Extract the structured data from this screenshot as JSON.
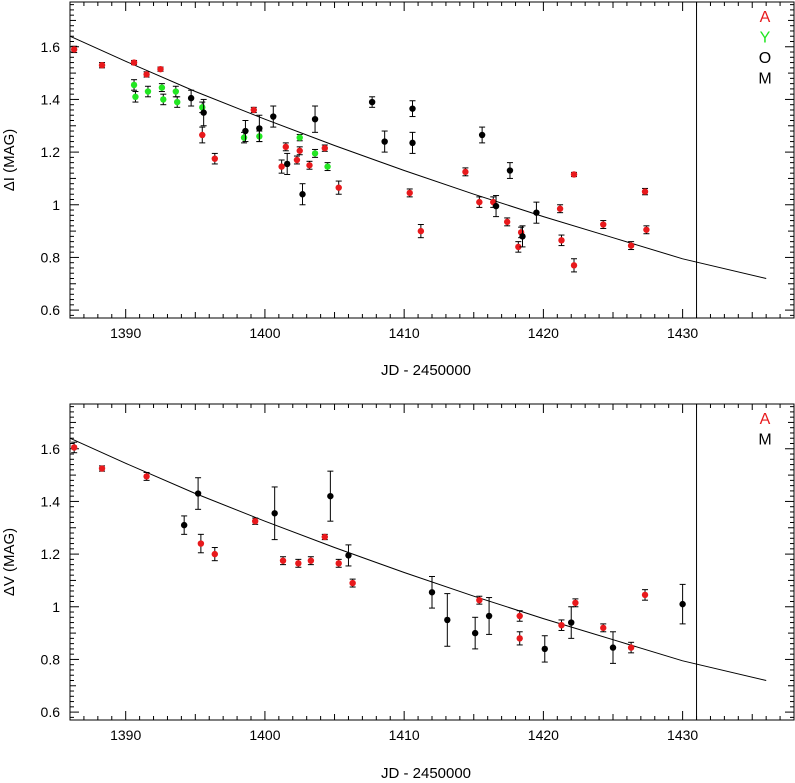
{
  "chart_data": [
    {
      "type": "scatter",
      "panel": "top",
      "xlabel": "JD - 2450000",
      "ylabel": "ΔI (MAG)",
      "xlim": [
        1386,
        1438
      ],
      "ylim": [
        0.57,
        1.77
      ],
      "x_ticks": [
        1390,
        1400,
        1410,
        1420,
        1430
      ],
      "y_ticks": [
        0.6,
        0.8,
        1,
        1.2,
        1.4,
        1.6
      ],
      "y_tick_labels": [
        "0.6",
        "0.8",
        "1",
        "1.2",
        "1.4",
        "1.6"
      ],
      "grid": false,
      "legend_position": "top-right",
      "vertical_line_x": 1431,
      "fit_curve": {
        "x": [
          1386,
          1390,
          1395,
          1400,
          1405,
          1410,
          1415,
          1420,
          1425,
          1430,
          1436
        ],
        "y": [
          1.64,
          1.545,
          1.43,
          1.325,
          1.225,
          1.13,
          1.04,
          0.955,
          0.875,
          0.795,
          0.72
        ]
      },
      "series": [
        {
          "name": "A",
          "color": "#e8191c",
          "points": [
            [
              1386.3,
              1.59,
              0.012
            ],
            [
              1388.3,
              1.53,
              0.01
            ],
            [
              1390.6,
              1.54,
              0.008
            ],
            [
              1391.5,
              1.495,
              0.01
            ],
            [
              1392.5,
              1.515,
              0.008
            ],
            [
              1395.5,
              1.265,
              0.03
            ],
            [
              1396.4,
              1.175,
              0.02
            ],
            [
              1399.2,
              1.36,
              0.01
            ],
            [
              1401.2,
              1.145,
              0.025
            ],
            [
              1401.5,
              1.22,
              0.015
            ],
            [
              1402.3,
              1.17,
              0.015
            ],
            [
              1402.5,
              1.205,
              0.015
            ],
            [
              1403.2,
              1.15,
              0.015
            ],
            [
              1404.3,
              1.215,
              0.012
            ],
            [
              1405.3,
              1.065,
              0.025
            ],
            [
              1410.4,
              1.045,
              0.015
            ],
            [
              1411.2,
              0.9,
              0.025
            ],
            [
              1414.4,
              1.125,
              0.015
            ],
            [
              1415.4,
              1.01,
              0.02
            ],
            [
              1416.4,
              1.01,
              0.02
            ],
            [
              1417.4,
              0.935,
              0.015
            ],
            [
              1418.2,
              0.84,
              0.02
            ],
            [
              1418.4,
              0.895,
              0.02
            ],
            [
              1421.2,
              0.985,
              0.015
            ],
            [
              1421.3,
              0.865,
              0.02
            ],
            [
              1422.2,
              1.115,
              0.008
            ],
            [
              1422.2,
              0.77,
              0.025
            ],
            [
              1424.3,
              0.925,
              0.015
            ],
            [
              1426.3,
              0.845,
              0.015
            ],
            [
              1427.3,
              1.05,
              0.012
            ],
            [
              1427.4,
              0.905,
              0.015
            ]
          ]
        },
        {
          "name": "Y",
          "color": "#22e622",
          "points": [
            [
              1390.6,
              1.455,
              0.02
            ],
            [
              1390.7,
              1.41,
              0.02
            ],
            [
              1391.6,
              1.43,
              0.02
            ],
            [
              1392.6,
              1.445,
              0.015
            ],
            [
              1392.7,
              1.4,
              0.02
            ],
            [
              1393.6,
              1.43,
              0.02
            ],
            [
              1393.7,
              1.39,
              0.02
            ],
            [
              1395.5,
              1.37,
              0.02
            ],
            [
              1398.5,
              1.255,
              0.02
            ],
            [
              1399.6,
              1.26,
              0.02
            ],
            [
              1402.5,
              1.255,
              0.012
            ],
            [
              1403.6,
              1.195,
              0.015
            ],
            [
              1404.5,
              1.145,
              0.015
            ]
          ]
        },
        {
          "name": "O",
          "color": "#000000",
          "points": [
            [
              1394.7,
              1.405,
              0.03
            ],
            [
              1395.6,
              1.35,
              0.05
            ],
            [
              1398.6,
              1.28,
              0.04
            ],
            [
              1399.6,
              1.29,
              0.05
            ],
            [
              1400.6,
              1.335,
              0.04
            ],
            [
              1401.6,
              1.155,
              0.04
            ],
            [
              1402.7,
              1.04,
              0.04
            ],
            [
              1403.6,
              1.325,
              0.05
            ],
            [
              1407.7,
              1.39,
              0.02
            ],
            [
              1408.6,
              1.24,
              0.04
            ],
            [
              1410.6,
              1.365,
              0.03
            ],
            [
              1410.6,
              1.235,
              0.04
            ],
            [
              1415.6,
              1.265,
              0.03
            ],
            [
              1416.6,
              0.995,
              0.04
            ],
            [
              1417.6,
              1.13,
              0.03
            ],
            [
              1418.5,
              0.88,
              0.04
            ],
            [
              1419.5,
              0.97,
              0.04
            ]
          ]
        },
        {
          "name": "M",
          "color": "#000000",
          "points": []
        }
      ]
    },
    {
      "type": "scatter",
      "panel": "bottom",
      "xlabel": "JD - 2450000",
      "ylabel": "ΔV (MAG)",
      "xlim": [
        1386,
        1438
      ],
      "ylim": [
        0.57,
        1.77
      ],
      "x_ticks": [
        1390,
        1400,
        1410,
        1420,
        1430
      ],
      "y_ticks": [
        0.6,
        0.8,
        1,
        1.2,
        1.4,
        1.6
      ],
      "y_tick_labels": [
        "0.6",
        "0.8",
        "1",
        "1.2",
        "1.4",
        "1.6"
      ],
      "grid": false,
      "legend_position": "top-right",
      "vertical_line_x": 1431,
      "fit_curve": {
        "x": [
          1386,
          1390,
          1395,
          1400,
          1405,
          1410,
          1415,
          1420,
          1425,
          1430,
          1436
        ],
        "y": [
          1.64,
          1.545,
          1.43,
          1.325,
          1.225,
          1.13,
          1.04,
          0.955,
          0.875,
          0.795,
          0.72
        ]
      },
      "series": [
        {
          "name": "A",
          "color": "#e8191c",
          "points": [
            [
              1386.3,
              1.605,
              0.02
            ],
            [
              1388.3,
              1.525,
              0.01
            ],
            [
              1391.5,
              1.495,
              0.015
            ],
            [
              1395.4,
              1.24,
              0.035
            ],
            [
              1396.4,
              1.2,
              0.025
            ],
            [
              1399.3,
              1.325,
              0.012
            ],
            [
              1401.3,
              1.175,
              0.015
            ],
            [
              1402.4,
              1.165,
              0.015
            ],
            [
              1403.3,
              1.175,
              0.015
            ],
            [
              1404.3,
              1.265,
              0.01
            ],
            [
              1405.3,
              1.165,
              0.015
            ],
            [
              1406.3,
              1.09,
              0.015
            ],
            [
              1415.4,
              1.025,
              0.015
            ],
            [
              1418.3,
              0.965,
              0.02
            ],
            [
              1418.3,
              0.88,
              0.025
            ],
            [
              1421.3,
              0.93,
              0.02
            ],
            [
              1422.3,
              1.015,
              0.015
            ],
            [
              1424.3,
              0.92,
              0.015
            ],
            [
              1426.3,
              0.845,
              0.02
            ],
            [
              1427.3,
              1.045,
              0.02
            ]
          ]
        },
        {
          "name": "M",
          "color": "#000000",
          "points": [
            [
              1394.2,
              1.31,
              0.035
            ],
            [
              1395.2,
              1.43,
              0.06
            ],
            [
              1400.7,
              1.355,
              0.1
            ],
            [
              1404.7,
              1.42,
              0.095
            ],
            [
              1406.0,
              1.195,
              0.04
            ],
            [
              1412.0,
              1.055,
              0.06
            ],
            [
              1413.1,
              0.95,
              0.1
            ],
            [
              1415.1,
              0.9,
              0.06
            ],
            [
              1416.1,
              0.965,
              0.07
            ],
            [
              1420.1,
              0.84,
              0.05
            ],
            [
              1422.0,
              0.94,
              0.06
            ],
            [
              1425.0,
              0.845,
              0.06
            ],
            [
              1430.0,
              1.01,
              0.075
            ]
          ]
        }
      ]
    }
  ]
}
